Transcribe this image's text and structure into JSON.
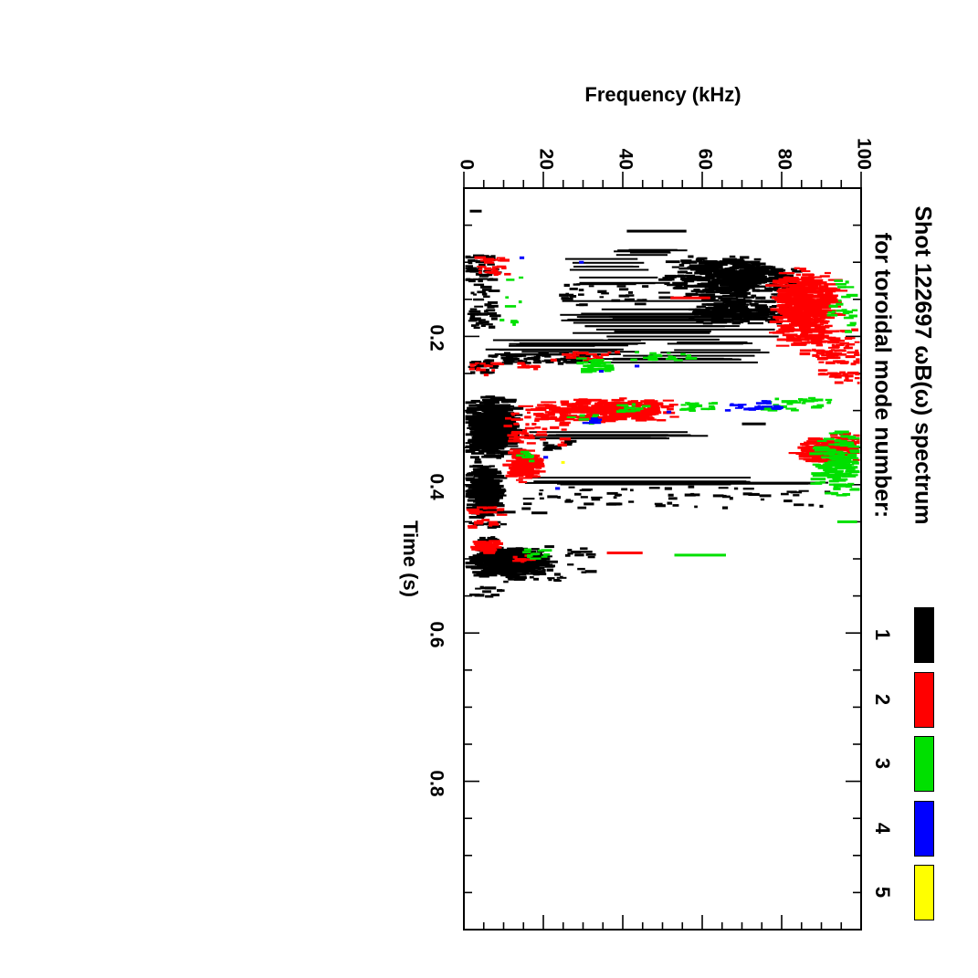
{
  "page": {
    "background": "#ffffff"
  },
  "header": {
    "title_line1": "Shot 122697 ωB(ω) spectrum",
    "title_line2": "for toroidal mode number:"
  },
  "axes": {
    "frequency": {
      "label": "Frequency (kHz)",
      "range": [
        0,
        100
      ],
      "minor_step": 5,
      "major_ticks": [
        {
          "value": 0,
          "label": "0"
        },
        {
          "value": 20,
          "label": "20"
        },
        {
          "value": 40,
          "label": "40"
        },
        {
          "value": 60,
          "label": "60"
        },
        {
          "value": 80,
          "label": "80"
        },
        {
          "value": 100,
          "label": "100"
        }
      ]
    },
    "time": {
      "label": "Time (s)",
      "range": [
        0,
        1.0
      ],
      "minor_step": 0.05,
      "major_ticks": [
        {
          "value": 0.2,
          "label": "0.2"
        },
        {
          "value": 0.4,
          "label": "0.4"
        },
        {
          "value": 0.6,
          "label": "0.6"
        },
        {
          "value": 0.8,
          "label": "0.8"
        }
      ]
    }
  },
  "legend": {
    "items": [
      {
        "label": "1",
        "color": "#000000"
      },
      {
        "label": "2",
        "color": "#ff0000"
      },
      {
        "label": "3",
        "color": "#00e000"
      },
      {
        "label": "4",
        "color": "#0000ff"
      },
      {
        "label": "5",
        "color": "#ffff00"
      }
    ]
  },
  "chart_data": {
    "type": "scatter",
    "title": "Shot 122697 ωB(ω) spectrum for toroidal mode number: 1-5",
    "xlabel": "Frequency (kHz)",
    "ylabel": "Time (s)",
    "xlim": [
      0,
      100
    ],
    "ylim": [
      0,
      1.0
    ],
    "grid": false,
    "legend_position": "right",
    "orientation_note": "Plot is a 90°-rotated spectrogram: frequency runs horizontally (0-100 kHz), time runs vertically downward (0-1.0 s); points are short horizontal dashes colored by toroidal mode number.",
    "cluster_format": "kind: blob=center-weighted cloud, cloud=uniform cloud, lines=long horizontal streaks, dash=single streak, speck=single small mark; t=[s range], f=[kHz range], n=point count",
    "series": [
      {
        "name": "n=1",
        "mode": 1,
        "color": "#000000",
        "clusters": [
          {
            "kind": "dash",
            "t": [
              0.031,
              0.031
            ],
            "f": [
              1.5,
              4.5
            ],
            "n": 1
          },
          {
            "kind": "dash",
            "t": [
              0.058,
              0.058
            ],
            "f": [
              41,
              56
            ],
            "n": 1
          },
          {
            "kind": "lines",
            "t": [
              0.082,
              0.098
            ],
            "f": [
              37,
              58
            ],
            "n": 5
          },
          {
            "kind": "blob",
            "t": [
              0.09,
              0.152
            ],
            "f": [
              50,
              85
            ],
            "n": 430
          },
          {
            "kind": "lines",
            "t": [
              0.095,
              0.13
            ],
            "f": [
              24,
              52
            ],
            "n": 9
          },
          {
            "kind": "cloud",
            "t": [
              0.09,
              0.125
            ],
            "f": [
              1,
              9
            ],
            "n": 45
          },
          {
            "kind": "cloud",
            "t": [
              0.13,
              0.19
            ],
            "f": [
              2,
              8
            ],
            "n": 40
          },
          {
            "kind": "cloud",
            "t": [
              0.13,
              0.158
            ],
            "f": [
              25,
              46
            ],
            "n": 28
          },
          {
            "kind": "blob",
            "t": [
              0.145,
              0.185
            ],
            "f": [
              56,
              83
            ],
            "n": 170
          },
          {
            "kind": "lines",
            "t": [
              0.15,
              0.185
            ],
            "f": [
              24,
              84
            ],
            "n": 11
          },
          {
            "kind": "lines",
            "t": [
              0.185,
              0.205
            ],
            "f": [
              27,
              80
            ],
            "n": 7
          },
          {
            "kind": "lines",
            "t": [
              0.205,
              0.225
            ],
            "f": [
              5,
              46
            ],
            "n": 12
          },
          {
            "kind": "lines",
            "t": [
              0.205,
              0.222
            ],
            "f": [
              48,
              78
            ],
            "n": 5
          },
          {
            "kind": "cloud",
            "t": [
              0.222,
              0.236
            ],
            "f": [
              10,
              32
            ],
            "n": 70
          },
          {
            "kind": "lines",
            "t": [
              0.222,
              0.236
            ],
            "f": [
              32,
              78
            ],
            "n": 6
          },
          {
            "kind": "cloud",
            "t": [
              0.225,
              0.25
            ],
            "f": [
              2,
              8
            ],
            "n": 25
          },
          {
            "kind": "blob",
            "t": [
              0.28,
              0.365
            ],
            "f": [
              0.5,
              14
            ],
            "n": 560
          },
          {
            "kind": "blob",
            "t": [
              0.365,
              0.45
            ],
            "f": [
              0.5,
              10
            ],
            "n": 300
          },
          {
            "kind": "lines",
            "t": [
              0.325,
              0.342
            ],
            "f": [
              12,
              62
            ],
            "n": 7
          },
          {
            "kind": "cloud",
            "t": [
              0.34,
              0.352
            ],
            "f": [
              20,
              27
            ],
            "n": 12
          },
          {
            "kind": "dash",
            "t": [
              0.318,
              0.318
            ],
            "f": [
              70,
              76
            ],
            "n": 1
          },
          {
            "kind": "lines",
            "t": [
              0.385,
              0.4
            ],
            "f": [
              11,
              93
            ],
            "n": 9
          },
          {
            "kind": "cloud",
            "t": [
              0.402,
              0.432
            ],
            "f": [
              13,
              77
            ],
            "n": 55
          },
          {
            "kind": "cloud",
            "t": [
              0.405,
              0.43
            ],
            "f": [
              80,
              95
            ],
            "n": 10
          },
          {
            "kind": "dash",
            "t": [
              0.437,
              0.437
            ],
            "f": [
              8,
              13
            ],
            "n": 1
          },
          {
            "kind": "dash",
            "t": [
              0.438,
              0.438
            ],
            "f": [
              17,
              21
            ],
            "n": 1
          },
          {
            "kind": "cloud",
            "t": [
              0.448,
              0.458
            ],
            "f": [
              2,
              10
            ],
            "n": 15
          },
          {
            "kind": "cloud",
            "t": [
              0.468,
              0.478
            ],
            "f": [
              4,
              8
            ],
            "n": 8
          },
          {
            "kind": "blob",
            "t": [
              0.483,
              0.527
            ],
            "f": [
              1,
              22
            ],
            "n": 420
          },
          {
            "kind": "cloud",
            "t": [
              0.505,
              0.532
            ],
            "f": [
              10,
              32
            ],
            "n": 40
          },
          {
            "kind": "cloud",
            "t": [
              0.485,
              0.5
            ],
            "f": [
              26,
              34
            ],
            "n": 10
          },
          {
            "kind": "cloud",
            "t": [
              0.538,
              0.552
            ],
            "f": [
              2,
              10
            ],
            "n": 12
          }
        ]
      },
      {
        "name": "n=2",
        "mode": 2,
        "color": "#ff0000",
        "clusters": [
          {
            "kind": "cloud",
            "t": [
              0.09,
              0.12
            ],
            "f": [
              4,
              11
            ],
            "n": 30
          },
          {
            "kind": "blob",
            "t": [
              0.105,
              0.215
            ],
            "f": [
              77,
              95
            ],
            "n": 430
          },
          {
            "kind": "cloud",
            "t": [
              0.19,
              0.228
            ],
            "f": [
              85,
              99
            ],
            "n": 60
          },
          {
            "kind": "dash",
            "t": [
              0.148,
              0.148
            ],
            "f": [
              52,
              62
            ],
            "n": 1
          },
          {
            "kind": "cloud",
            "t": [
              0.218,
              0.237
            ],
            "f": [
              89,
              100
            ],
            "n": 35
          },
          {
            "kind": "cloud",
            "t": [
              0.22,
              0.233
            ],
            "f": [
              21,
              40
            ],
            "n": 18
          },
          {
            "kind": "cloud",
            "t": [
              0.235,
              0.246
            ],
            "f": [
              2,
              9
            ],
            "n": 12
          },
          {
            "kind": "cloud",
            "t": [
              0.235,
              0.244
            ],
            "f": [
              14,
              19
            ],
            "n": 8
          },
          {
            "kind": "cloud",
            "t": [
              0.245,
              0.263
            ],
            "f": [
              90,
              100
            ],
            "n": 22
          },
          {
            "kind": "speck",
            "t": [
              0.252,
              0.252
            ],
            "f": [
              5,
              7
            ],
            "n": 1
          },
          {
            "kind": "blob",
            "t": [
              0.283,
              0.316
            ],
            "f": [
              15,
              55
            ],
            "n": 300
          },
          {
            "kind": "cloud",
            "t": [
              0.3,
              0.35
            ],
            "f": [
              11,
              26
            ],
            "n": 50
          },
          {
            "kind": "cloud",
            "t": [
              0.33,
              0.346
            ],
            "f": [
              93,
              100
            ],
            "n": 20
          },
          {
            "kind": "blob",
            "t": [
              0.335,
              0.372
            ],
            "f": [
              83,
              100
            ],
            "n": 160
          },
          {
            "kind": "blob",
            "t": [
              0.35,
              0.397
            ],
            "f": [
              11,
              20
            ],
            "n": 140
          },
          {
            "kind": "cloud",
            "t": [
              0.43,
              0.441
            ],
            "f": [
              2,
              10
            ],
            "n": 18
          },
          {
            "kind": "cloud",
            "t": [
              0.447,
              0.457
            ],
            "f": [
              1,
              8
            ],
            "n": 12
          },
          {
            "kind": "blob",
            "t": [
              0.475,
              0.493
            ],
            "f": [
              2,
              9
            ],
            "n": 45
          },
          {
            "kind": "dash",
            "t": [
              0.492,
              0.492
            ],
            "f": [
              36,
              45
            ],
            "n": 1
          },
          {
            "kind": "cloud",
            "t": [
              0.492,
              0.504
            ],
            "f": [
              12,
              18
            ],
            "n": 10
          }
        ]
      },
      {
        "name": "n=3",
        "mode": 3,
        "color": "#00e000",
        "clusters": [
          {
            "kind": "cloud",
            "t": [
              0.095,
              0.19
            ],
            "f": [
              9,
              16
            ],
            "n": 8
          },
          {
            "kind": "cloud",
            "t": [
              0.12,
              0.195
            ],
            "f": [
              92,
              99
            ],
            "n": 25
          },
          {
            "kind": "speck",
            "t": [
              0.178,
              0.178
            ],
            "f": [
              9,
              11
            ],
            "n": 1
          },
          {
            "kind": "cloud",
            "t": [
              0.22,
              0.233
            ],
            "f": [
              41,
              58
            ],
            "n": 20
          },
          {
            "kind": "blob",
            "t": [
              0.228,
              0.249
            ],
            "f": [
              29,
              38
            ],
            "n": 28
          },
          {
            "kind": "cloud",
            "t": [
              0.283,
              0.3
            ],
            "f": [
              75,
              93
            ],
            "n": 28
          },
          {
            "kind": "cloud",
            "t": [
              0.288,
              0.301
            ],
            "f": [
              55,
              64
            ],
            "n": 18
          },
          {
            "kind": "cloud",
            "t": [
              0.29,
              0.303
            ],
            "f": [
              39,
              46
            ],
            "n": 12
          },
          {
            "kind": "cloud",
            "t": [
              0.305,
              0.318
            ],
            "f": [
              27,
              34
            ],
            "n": 10
          },
          {
            "kind": "blob",
            "t": [
              0.325,
              0.42
            ],
            "f": [
              88,
              100
            ],
            "n": 140
          },
          {
            "kind": "cloud",
            "t": [
              0.355,
              0.368
            ],
            "f": [
              14,
              18
            ],
            "n": 8
          },
          {
            "kind": "dash",
            "t": [
              0.45,
              0.45
            ],
            "f": [
              94,
              99
            ],
            "n": 1
          },
          {
            "kind": "cloud",
            "t": [
              0.487,
              0.5
            ],
            "f": [
              15,
              23
            ],
            "n": 12
          },
          {
            "kind": "dash",
            "t": [
              0.495,
              0.495
            ],
            "f": [
              53,
              66
            ],
            "n": 1
          }
        ]
      },
      {
        "name": "n=4",
        "mode": 4,
        "color": "#0000ff",
        "clusters": [
          {
            "kind": "speck",
            "t": [
              0.094,
              0.094
            ],
            "f": [
              14,
              16
            ],
            "n": 1
          },
          {
            "kind": "speck",
            "t": [
              0.1,
              0.1
            ],
            "f": [
              29,
              31
            ],
            "n": 1
          },
          {
            "kind": "speck",
            "t": [
              0.24,
              0.24
            ],
            "f": [
              43,
              45
            ],
            "n": 1
          },
          {
            "kind": "speck",
            "t": [
              0.247,
              0.247
            ],
            "f": [
              34,
              36
            ],
            "n": 1
          },
          {
            "kind": "cloud",
            "t": [
              0.287,
              0.3
            ],
            "f": [
              66,
              80
            ],
            "n": 22
          },
          {
            "kind": "speck",
            "t": [
              0.302,
              0.302
            ],
            "f": [
              51,
              53
            ],
            "n": 1
          },
          {
            "kind": "cloud",
            "t": [
              0.31,
              0.318
            ],
            "f": [
              30,
              35
            ],
            "n": 6
          },
          {
            "kind": "speck",
            "t": [
              0.363,
              0.363
            ],
            "f": [
              20,
              22
            ],
            "n": 1
          },
          {
            "kind": "speck",
            "t": [
              0.405,
              0.405
            ],
            "f": [
              23,
              25
            ],
            "n": 1
          }
        ]
      },
      {
        "name": "n=5",
        "mode": 5,
        "color": "#ffff00",
        "clusters": [
          {
            "kind": "speck",
            "t": [
              0.37,
              0.37
            ],
            "f": [
              24.5,
              26
            ],
            "n": 1
          }
        ]
      }
    ]
  }
}
